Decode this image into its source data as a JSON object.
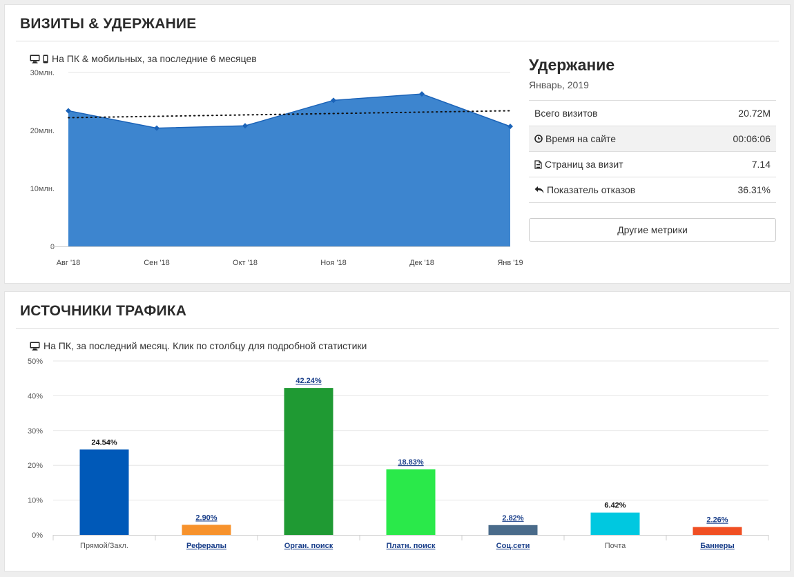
{
  "visits_panel": {
    "title": "ВИЗИТЫ & УДЕРЖАНИЕ",
    "subtitle": "На ПК & мобильных, за последние 6 месяцев",
    "subtitle_icons": [
      "desktop-icon",
      "mobile-icon"
    ]
  },
  "retention": {
    "title": "Удержание",
    "date": "Январь, 2019",
    "rows": [
      {
        "label": "Всего визитов",
        "value": "20.72M",
        "icon": ""
      },
      {
        "label": "Время на сайте",
        "value": "00:06:06",
        "icon": "clock-icon"
      },
      {
        "label": "Страниц за визит",
        "value": "7.14",
        "icon": "document-icon"
      },
      {
        "label": "Показатель отказов",
        "value": "36.31%",
        "icon": "reply-arrow-icon"
      }
    ],
    "more_button": "Другие метрики"
  },
  "traffic_panel": {
    "title": "ИСТОЧНИКИ ТРАФИКА",
    "subtitle": "На ПК, за последний месяц. Клик по столбцу для подробной статистики",
    "subtitle_icons": [
      "desktop-icon"
    ]
  },
  "colors": {
    "area_fill": "#3d85cf",
    "area_line": "#1b63b8",
    "link_blue": "#1a3f8a"
  },
  "chart_data": [
    {
      "type": "area",
      "categories": [
        "Авг '18",
        "Сен '18",
        "Окт '18",
        "Ноя '18",
        "Дек '18",
        "Янв '19"
      ],
      "values": [
        23.4,
        20.4,
        20.8,
        25.2,
        26.3,
        20.7
      ],
      "trend": [
        22.2,
        23.4
      ],
      "y_ticks": [
        "0",
        "10млн.",
        "20млн.",
        "30млн."
      ],
      "ylim": [
        0,
        30
      ],
      "grid": true,
      "legend": "none"
    },
    {
      "type": "bar",
      "categories": [
        "Прямой/Закл.",
        "Рефералы",
        "Орган. поиск",
        "Платн. поиск",
        "Соц.сети",
        "Почта",
        "Баннеры"
      ],
      "values": [
        24.54,
        2.9,
        42.24,
        18.83,
        2.82,
        6.42,
        2.26
      ],
      "labels": [
        "24.54%",
        "2.90%",
        "42.24%",
        "18.83%",
        "2.82%",
        "6.42%",
        "2.26%"
      ],
      "colors": [
        "#0059b8",
        "#f7922c",
        "#1f9a33",
        "#2ae94a",
        "#4a6b8a",
        "#00c8e0",
        "#f04f23"
      ],
      "linked": [
        false,
        true,
        true,
        true,
        true,
        false,
        true
      ],
      "y_ticks": [
        "0%",
        "10%",
        "20%",
        "30%",
        "40%",
        "50%"
      ],
      "ylim": [
        0,
        50
      ],
      "grid": true,
      "legend": "none"
    }
  ]
}
